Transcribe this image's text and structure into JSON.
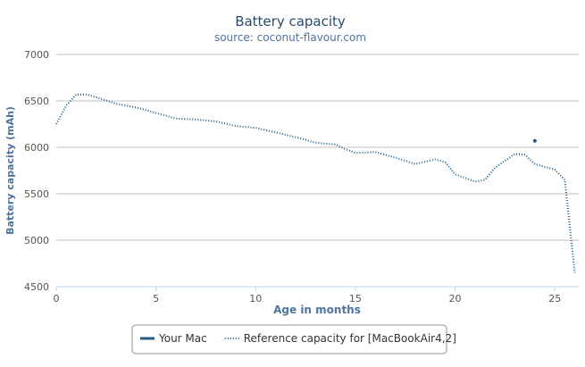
{
  "chart_data": {
    "type": "line",
    "title": "Battery capacity",
    "subtitle": "source: coconut-flavour.com",
    "x_label": "Age in months",
    "y_label": "Battery capacity (mAh)",
    "xlim": [
      0,
      26.2
    ],
    "xticks": [
      0,
      5,
      10,
      15,
      20,
      25
    ],
    "ylim": [
      4500,
      7000
    ],
    "yticks": [
      4500,
      5000,
      5500,
      6000,
      6500,
      7000
    ],
    "grid": true,
    "series": [
      {
        "name": "Your Mac",
        "color": "#1f5b86",
        "style": "point",
        "x": [
          24
        ],
        "values": [
          6070
        ]
      },
      {
        "name": "Reference capacity for [MacBookAir4,2]",
        "color": "#1f5b86",
        "style": "dotted",
        "x": [
          0,
          0.5,
          1,
          1.5,
          2,
          3,
          4,
          5,
          6,
          7,
          8,
          9,
          10,
          11,
          12,
          13,
          14,
          14.5,
          15,
          16,
          17,
          18,
          19,
          19.5,
          20,
          21,
          21.5,
          22,
          23,
          23.5,
          24,
          25,
          25.5,
          26
        ],
        "values": [
          6250,
          6450,
          6570,
          6570,
          6540,
          6470,
          6430,
          6370,
          6310,
          6300,
          6280,
          6230,
          6210,
          6160,
          6110,
          6050,
          6030,
          5980,
          5940,
          5950,
          5890,
          5820,
          5870,
          5840,
          5710,
          5630,
          5650,
          5780,
          5930,
          5920,
          5820,
          5760,
          5650,
          4650
        ]
      }
    ]
  }
}
